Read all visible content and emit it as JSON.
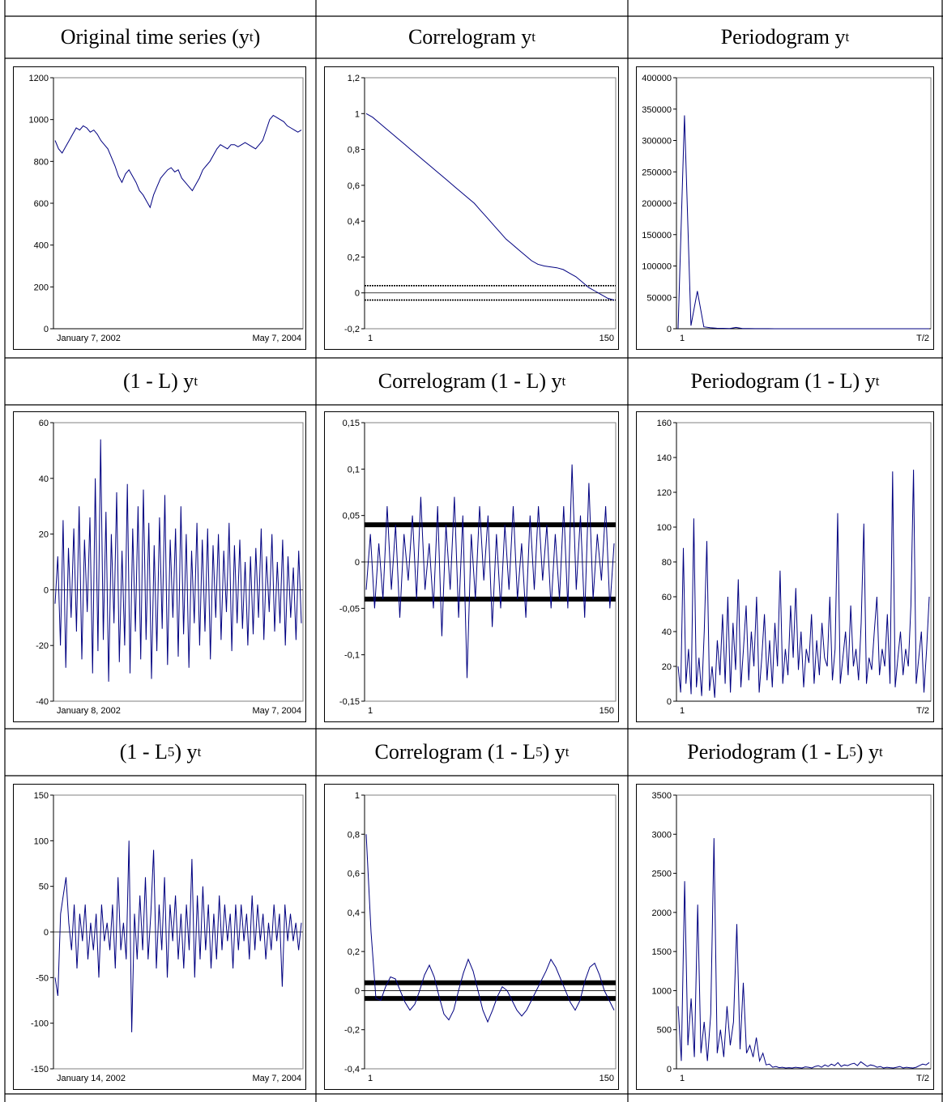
{
  "headers": {
    "row1": [
      "Original time series (y",
      "Correlogram y",
      "Periodogram y"
    ],
    "row2": [
      "(1 - L) y",
      "Correlogram (1 - L) y",
      "Periodogram (1 - L) y"
    ],
    "row3": [
      "(1 - L",
      "Correlogram (1 - L",
      "Periodogram (1 - L"
    ]
  },
  "header_parts": {
    "sub_t": "t",
    "sup_5": "5",
    "close_paren": ")",
    "close_paren_space": ") y"
  },
  "chart_data": [
    {
      "id": "ts1",
      "type": "line",
      "title": "",
      "ylim": [
        0,
        1200
      ],
      "yticks": [
        0,
        200,
        400,
        600,
        800,
        1000,
        1200
      ],
      "x_start_label": "January 7, 2002",
      "x_end_label": "May 7, 2004",
      "series": [
        {
          "values": [
            900,
            860,
            840,
            870,
            900,
            930,
            960,
            950,
            970,
            960,
            940,
            950,
            930,
            900,
            880,
            860,
            820,
            780,
            730,
            700,
            740,
            760,
            730,
            700,
            660,
            640,
            610,
            580,
            640,
            680,
            720,
            740,
            760,
            770,
            750,
            760,
            720,
            700,
            680,
            660,
            690,
            720,
            760,
            780,
            800,
            830,
            860,
            880,
            870,
            860,
            880,
            880,
            870,
            880,
            890,
            880,
            870,
            860,
            880,
            900,
            950,
            1000,
            1020,
            1010,
            1000,
            990,
            970,
            960,
            950,
            940,
            950
          ]
        }
      ]
    },
    {
      "id": "acf1",
      "type": "line",
      "title": "",
      "ylim": [
        -0.2,
        1.2
      ],
      "yticks": [
        "-0,2",
        "0",
        "0,2",
        "0,4",
        "0,6",
        "0,8",
        "1",
        "1,2"
      ],
      "x_start_label": "1",
      "x_end_label": "150",
      "conf_band": 0.04,
      "band_style": "dotted",
      "series": [
        {
          "values": [
            1,
            0.98,
            0.95,
            0.92,
            0.89,
            0.86,
            0.83,
            0.8,
            0.77,
            0.74,
            0.71,
            0.68,
            0.65,
            0.62,
            0.59,
            0.56,
            0.53,
            0.5,
            0.46,
            0.42,
            0.38,
            0.34,
            0.3,
            0.27,
            0.24,
            0.21,
            0.18,
            0.16,
            0.15,
            0.145,
            0.14,
            0.13,
            0.11,
            0.09,
            0.06,
            0.03,
            0.01,
            -0.01,
            -0.03,
            -0.04
          ]
        }
      ]
    },
    {
      "id": "per1",
      "type": "line",
      "title": "",
      "ylim": [
        0,
        400000
      ],
      "yticks": [
        "0",
        "50000",
        "100000",
        "150000",
        "200000",
        "250000",
        "300000",
        "350000",
        "400000"
      ],
      "x_start_label": "1",
      "x_end_label": "T/2",
      "series": [
        {
          "values": [
            0,
            340000,
            5000,
            60000,
            3000,
            1500,
            800,
            600,
            400,
            2000,
            300,
            200,
            150,
            100,
            80,
            60,
            40,
            30,
            20,
            10,
            10,
            10,
            10,
            10,
            10,
            10,
            10,
            10,
            10,
            10,
            10,
            10,
            10,
            10,
            10,
            10,
            10,
            10,
            10,
            10
          ]
        }
      ]
    },
    {
      "id": "ts2",
      "type": "line",
      "title": "",
      "ylim": [
        -40,
        60
      ],
      "yticks": [
        -40,
        -20,
        0,
        20,
        40,
        60
      ],
      "x_start_label": "January 8, 2002",
      "x_end_label": "May 7, 2004",
      "series": [
        {
          "values": [
            -5,
            12,
            -20,
            25,
            -28,
            15,
            -10,
            22,
            -15,
            30,
            -25,
            18,
            -8,
            26,
            -30,
            40,
            -22,
            54,
            -18,
            28,
            -33,
            20,
            -12,
            35,
            -26,
            14,
            -20,
            38,
            -30,
            22,
            -15,
            30,
            -25,
            36,
            -18,
            24,
            -32,
            16,
            -22,
            26,
            -14,
            34,
            -27,
            18,
            -10,
            22,
            -24,
            30,
            -16,
            20,
            -28,
            14,
            -12,
            24,
            -20,
            18,
            -15,
            22,
            -25,
            16,
            -10,
            20,
            -18,
            14,
            -8,
            24,
            -22,
            16,
            -12,
            18,
            -14,
            10,
            -20,
            12,
            -16,
            15,
            -10,
            22,
            -18,
            12,
            -8,
            20,
            -15,
            10,
            -12,
            18,
            -20,
            12,
            -10,
            8,
            -18,
            14,
            -12
          ]
        }
      ]
    },
    {
      "id": "acf2",
      "type": "line",
      "title": "",
      "ylim": [
        -0.15,
        0.15
      ],
      "yticks": [
        "-0,15",
        "-0,1",
        "-0,05",
        "0",
        "0,05",
        "0,1",
        "0,15"
      ],
      "x_start_label": "1",
      "x_end_label": "150",
      "conf_band": 0.04,
      "band_style": "thick",
      "series": [
        {
          "values": [
            -0.03,
            0.03,
            -0.05,
            0.02,
            -0.04,
            0.06,
            -0.03,
            0.04,
            -0.06,
            0.03,
            -0.02,
            0.05,
            -0.04,
            0.07,
            -0.03,
            0.02,
            -0.05,
            0.06,
            -0.08,
            0.04,
            -0.03,
            0.07,
            -0.06,
            0.05,
            -0.125,
            0.03,
            -0.04,
            0.06,
            -0.02,
            0.05,
            -0.07,
            0.03,
            -0.05,
            0.04,
            -0.03,
            0.06,
            -0.04,
            0.02,
            -0.06,
            0.05,
            -0.03,
            0.06,
            -0.02,
            0.04,
            -0.05,
            0.03,
            -0.04,
            0.06,
            -0.05,
            0.105,
            -0.03,
            0.05,
            -0.06,
            0.085,
            -0.04,
            0.03,
            -0.02,
            0.06,
            -0.05,
            0.02
          ]
        }
      ]
    },
    {
      "id": "per2",
      "type": "line",
      "title": "",
      "ylim": [
        0,
        160
      ],
      "yticks": [
        0,
        20,
        40,
        60,
        80,
        100,
        120,
        140,
        160
      ],
      "x_start_label": "1",
      "x_end_label": "T/2",
      "series": [
        {
          "values": [
            20,
            5,
            88,
            10,
            30,
            4,
            105,
            8,
            25,
            3,
            40,
            92,
            6,
            20,
            2,
            35,
            15,
            50,
            10,
            60,
            5,
            45,
            18,
            70,
            8,
            30,
            55,
            12,
            40,
            20,
            60,
            5,
            25,
            50,
            12,
            35,
            8,
            45,
            20,
            75,
            10,
            30,
            15,
            55,
            25,
            65,
            18,
            40,
            8,
            30,
            22,
            50,
            10,
            35,
            15,
            45,
            25,
            20,
            60,
            12,
            30,
            108,
            10,
            25,
            40,
            15,
            55,
            20,
            30,
            12,
            45,
            102,
            10,
            25,
            18,
            40,
            60,
            15,
            30,
            20,
            50,
            10,
            132,
            8,
            25,
            40,
            15,
            30,
            20,
            55,
            133,
            10,
            25,
            40,
            5,
            30,
            60
          ]
        }
      ]
    },
    {
      "id": "ts3",
      "type": "line",
      "title": "",
      "ylim": [
        -150,
        150
      ],
      "yticks": [
        -150,
        -100,
        -50,
        0,
        50,
        100,
        150
      ],
      "x_start_label": "January 14, 2002",
      "x_end_label": "May 7, 2004",
      "series": [
        {
          "values": [
            -50,
            -70,
            20,
            40,
            60,
            10,
            -20,
            30,
            -40,
            20,
            -10,
            30,
            -30,
            10,
            -20,
            20,
            -50,
            30,
            -10,
            10,
            -20,
            30,
            -40,
            60,
            -20,
            10,
            -30,
            100,
            -110,
            20,
            -30,
            40,
            -20,
            60,
            -30,
            20,
            90,
            -40,
            30,
            -20,
            60,
            -50,
            30,
            -10,
            40,
            -30,
            20,
            -40,
            30,
            -20,
            80,
            -50,
            40,
            -30,
            50,
            -20,
            30,
            -40,
            20,
            -30,
            40,
            -20,
            30,
            -10,
            20,
            -40,
            30,
            -20,
            30,
            -10,
            20,
            -30,
            40,
            -20,
            30,
            -10,
            20,
            -30,
            10,
            -20,
            30,
            -10,
            20,
            -60,
            30,
            -10,
            20,
            -10,
            10,
            -20,
            10
          ]
        }
      ]
    },
    {
      "id": "acf3",
      "type": "line",
      "title": "",
      "ylim": [
        -0.4,
        1
      ],
      "yticks": [
        "-0,4",
        "-0,2",
        "0",
        "0,2",
        "0,4",
        "0,6",
        "0,8",
        "1"
      ],
      "x_start_label": "1",
      "x_end_label": "150",
      "conf_band": 0.04,
      "band_style": "thick",
      "series": [
        {
          "values": [
            0.8,
            0.3,
            -0.04,
            -0.05,
            0.02,
            0.07,
            0.06,
            0.0,
            -0.06,
            -0.1,
            -0.07,
            0.0,
            0.08,
            0.13,
            0.07,
            -0.03,
            -0.12,
            -0.15,
            -0.1,
            0.0,
            0.09,
            0.16,
            0.1,
            0.0,
            -0.1,
            -0.16,
            -0.1,
            -0.03,
            0.02,
            0.0,
            -0.05,
            -0.1,
            -0.13,
            -0.1,
            -0.05,
            0.0,
            0.05,
            0.1,
            0.16,
            0.12,
            0.06,
            0.0,
            -0.06,
            -0.1,
            -0.05,
            0.05,
            0.12,
            0.14,
            0.08,
            0.0,
            -0.05,
            -0.1
          ]
        }
      ]
    },
    {
      "id": "per3",
      "type": "line",
      "title": "",
      "ylim": [
        0,
        3500
      ],
      "yticks": [
        0,
        500,
        1000,
        1500,
        2000,
        2500,
        3000,
        3500
      ],
      "x_start_label": "1",
      "x_end_label": "T/2",
      "series": [
        {
          "values": [
            800,
            100,
            2400,
            300,
            900,
            150,
            2100,
            200,
            600,
            100,
            700,
            2950,
            200,
            500,
            150,
            800,
            300,
            600,
            1850,
            250,
            1100,
            200,
            300,
            150,
            400,
            100,
            200,
            50,
            60,
            20,
            30,
            15,
            20,
            10,
            15,
            10,
            20,
            15,
            10,
            25,
            20,
            10,
            30,
            40,
            20,
            50,
            30,
            60,
            40,
            80,
            30,
            50,
            40,
            60,
            70,
            40,
            90,
            60,
            30,
            50,
            40,
            20,
            30,
            10,
            20,
            15,
            10,
            20,
            30,
            10,
            20,
            15,
            10,
            20,
            40,
            60,
            50,
            80
          ]
        }
      ]
    }
  ]
}
